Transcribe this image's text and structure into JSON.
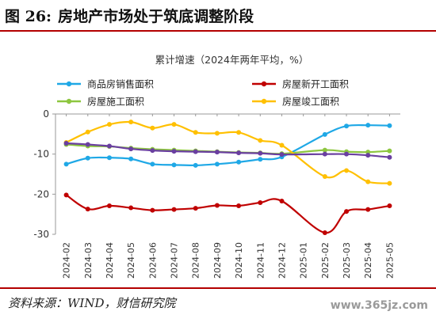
{
  "header": {
    "figure_number": "图 26:",
    "title": "房地产市场处于筑底调整阶段"
  },
  "footer": {
    "source": "资料来源：WIND，财信研究院",
    "watermark": "www.365jz.com"
  },
  "chart_data": {
    "type": "line",
    "title": "累计增速（2024年两年平均，%）",
    "ylim": [
      -30,
      0
    ],
    "yticks": [
      0,
      -10,
      -20,
      -30
    ],
    "grid": false,
    "legend_position": "top",
    "categories": [
      "2024-02",
      "2024-03",
      "2024-04",
      "2024-05",
      "2024-06",
      "2024-07",
      "2024-08",
      "2024-09",
      "2024-10",
      "2024-11",
      "2024-12",
      "2025-01",
      "2025-02",
      "2025-03",
      "2025-04",
      "2025-05"
    ],
    "series": [
      {
        "name": "商品房销售面积",
        "color": "#1fa8e6",
        "values": [
          -12.5,
          -11.0,
          -10.9,
          -11.2,
          -12.5,
          -12.7,
          -12.8,
          -12.5,
          -12.0,
          -11.3,
          -10.7,
          null,
          -5.1,
          -3.0,
          -2.8,
          -2.9
        ]
      },
      {
        "name": "房屋新开工面积",
        "color": "#c00000",
        "values": [
          -20.2,
          -23.7,
          -22.9,
          -23.4,
          -24.0,
          -23.8,
          -23.5,
          -22.8,
          -22.9,
          -22.1,
          -21.7,
          null,
          -29.6,
          -24.3,
          -23.8,
          -22.9
        ]
      },
      {
        "name": "房屋施工面积",
        "color": "#8dc63f",
        "values": [
          -7.6,
          -8.0,
          -8.1,
          -8.5,
          -8.8,
          -9.0,
          -9.2,
          -9.4,
          -9.6,
          -9.7,
          -9.9,
          null,
          -9.0,
          -9.4,
          -9.5,
          -9.2
        ]
      },
      {
        "name": "房屋竣工面积",
        "color": "#ffc000",
        "values": [
          -7.1,
          -4.5,
          -2.6,
          -2.0,
          -3.5,
          -2.6,
          -4.6,
          -4.8,
          -4.6,
          -6.6,
          -7.8,
          null,
          -15.6,
          -14.1,
          -16.9,
          -17.3
        ]
      },
      {
        "name": "",
        "color": "#6a3fa0",
        "values": [
          -7.3,
          -7.6,
          -8.0,
          -8.7,
          -9.1,
          -9.3,
          -9.4,
          -9.5,
          -9.7,
          -9.8,
          -10.1,
          null,
          -10.0,
          -10.0,
          -10.3,
          -10.8
        ]
      }
    ]
  }
}
